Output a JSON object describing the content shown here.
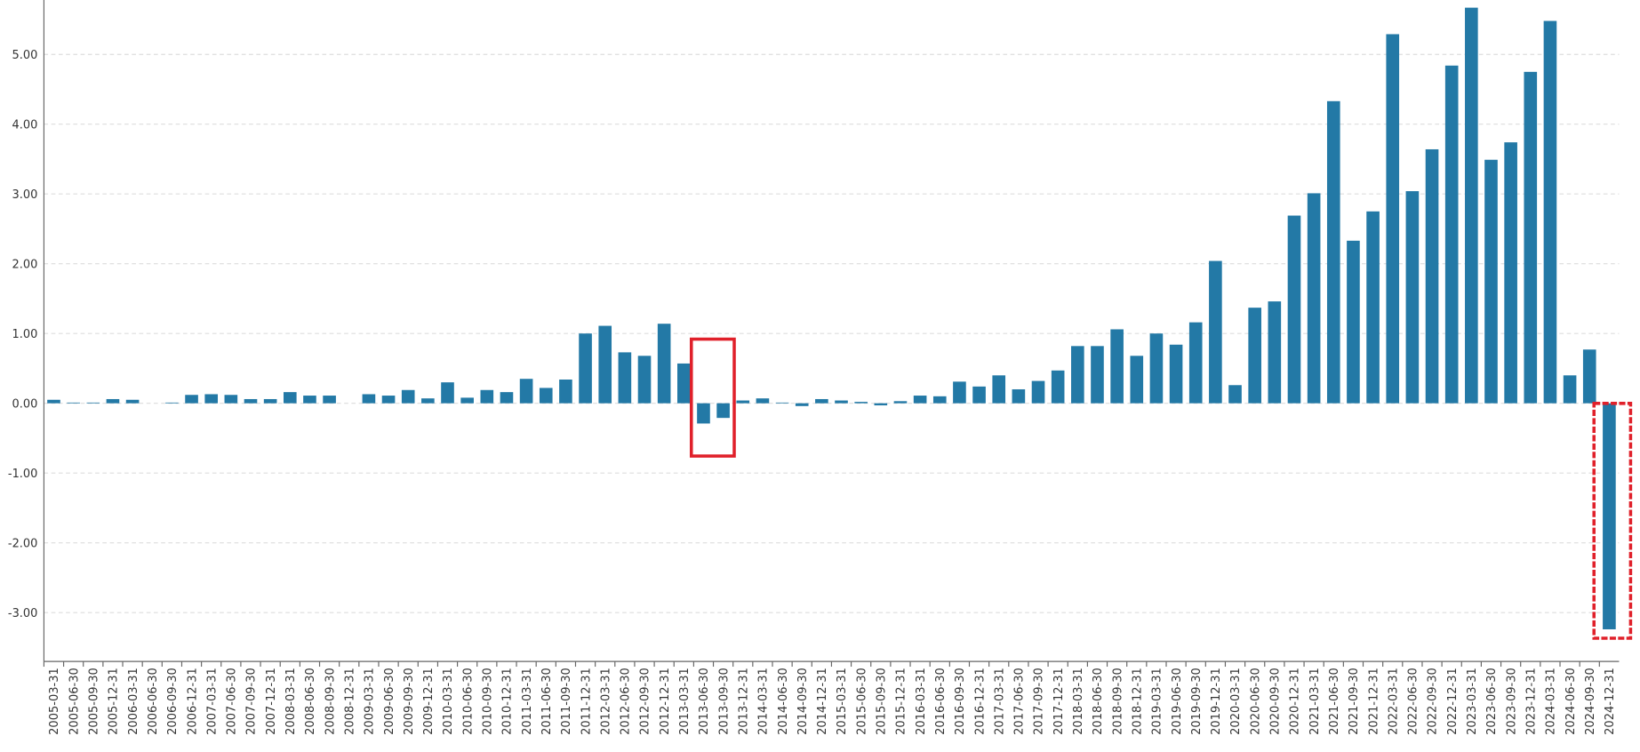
{
  "chart_data": {
    "type": "bar",
    "color": "#2379a6",
    "grid": true,
    "categories": [
      "2005-03-31",
      "2005-06-30",
      "2005-09-30",
      "2005-12-31",
      "2006-03-31",
      "2006-06-30",
      "2006-09-30",
      "2006-12-31",
      "2007-03-31",
      "2007-06-30",
      "2007-09-30",
      "2007-12-31",
      "2008-03-31",
      "2008-06-30",
      "2008-09-30",
      "2008-12-31",
      "2009-03-31",
      "2009-06-30",
      "2009-09-30",
      "2009-12-31",
      "2010-03-31",
      "2010-06-30",
      "2010-09-30",
      "2010-12-31",
      "2011-03-31",
      "2011-06-30",
      "2011-09-30",
      "2011-12-31",
      "2012-03-31",
      "2012-06-30",
      "2012-09-30",
      "2012-12-31",
      "2013-03-31",
      "2013-06-30",
      "2013-09-30",
      "2013-12-31",
      "2014-03-31",
      "2014-06-30",
      "2014-09-30",
      "2014-12-31",
      "2015-03-31",
      "2015-06-30",
      "2015-09-30",
      "2015-12-31",
      "2016-03-31",
      "2016-06-30",
      "2016-09-30",
      "2016-12-31",
      "2017-03-31",
      "2017-06-30",
      "2017-09-30",
      "2017-12-31",
      "2018-03-31",
      "2018-06-30",
      "2018-09-30",
      "2018-12-31",
      "2019-03-31",
      "2019-06-30",
      "2019-09-30",
      "2019-12-31",
      "2020-03-31",
      "2020-06-30",
      "2020-09-30",
      "2020-12-31",
      "2021-03-31",
      "2021-06-30",
      "2021-09-30",
      "2021-12-31",
      "2022-03-31",
      "2022-06-30",
      "2022-09-30",
      "2022-12-31",
      "2023-03-31",
      "2023-06-30",
      "2023-09-30",
      "2023-12-31",
      "2024-03-31",
      "2024-06-30",
      "2024-09-30",
      "2024-12-31"
    ],
    "values": [
      0.05,
      0.01,
      0.01,
      0.06,
      0.05,
      0,
      0.01,
      0.12,
      0.13,
      0.12,
      0.06,
      0.06,
      0.16,
      0.11,
      0.11,
      0,
      0.13,
      0.11,
      0.19,
      0.07,
      0.3,
      0.08,
      0.19,
      0.16,
      0.35,
      0.22,
      0.34,
      1.0,
      1.11,
      0.73,
      0.68,
      1.14,
      0.57,
      -0.29,
      -0.21,
      0.04,
      0.07,
      0.01,
      -0.04,
      0.06,
      0.04,
      0.02,
      -0.03,
      0.03,
      0.11,
      0.1,
      0.31,
      0.24,
      0.4,
      0.2,
      0.32,
      0.47,
      0.82,
      0.82,
      1.06,
      0.68,
      1.0,
      0.84,
      1.16,
      2.04,
      0.26,
      1.37,
      1.46,
      2.69,
      3.01,
      4.33,
      2.33,
      2.75,
      5.29,
      3.04,
      3.64,
      4.84,
      5.67,
      3.49,
      3.74,
      4.75,
      5.48,
      0.4,
      0.77,
      -3.24
    ],
    "ylim": [
      -3.7,
      5.78
    ],
    "yticks": [
      {
        "value": -3,
        "label": "-3.00"
      },
      {
        "value": -2,
        "label": "-2.00"
      },
      {
        "value": -1,
        "label": "-1.00"
      },
      {
        "value": 0,
        "label": "0.00"
      },
      {
        "value": 1,
        "label": "1.00"
      },
      {
        "value": 2,
        "label": "2.00"
      },
      {
        "value": 3,
        "label": "3.00"
      },
      {
        "value": 4,
        "label": "4.00"
      },
      {
        "value": 5,
        "label": "5.00"
      }
    ]
  }
}
